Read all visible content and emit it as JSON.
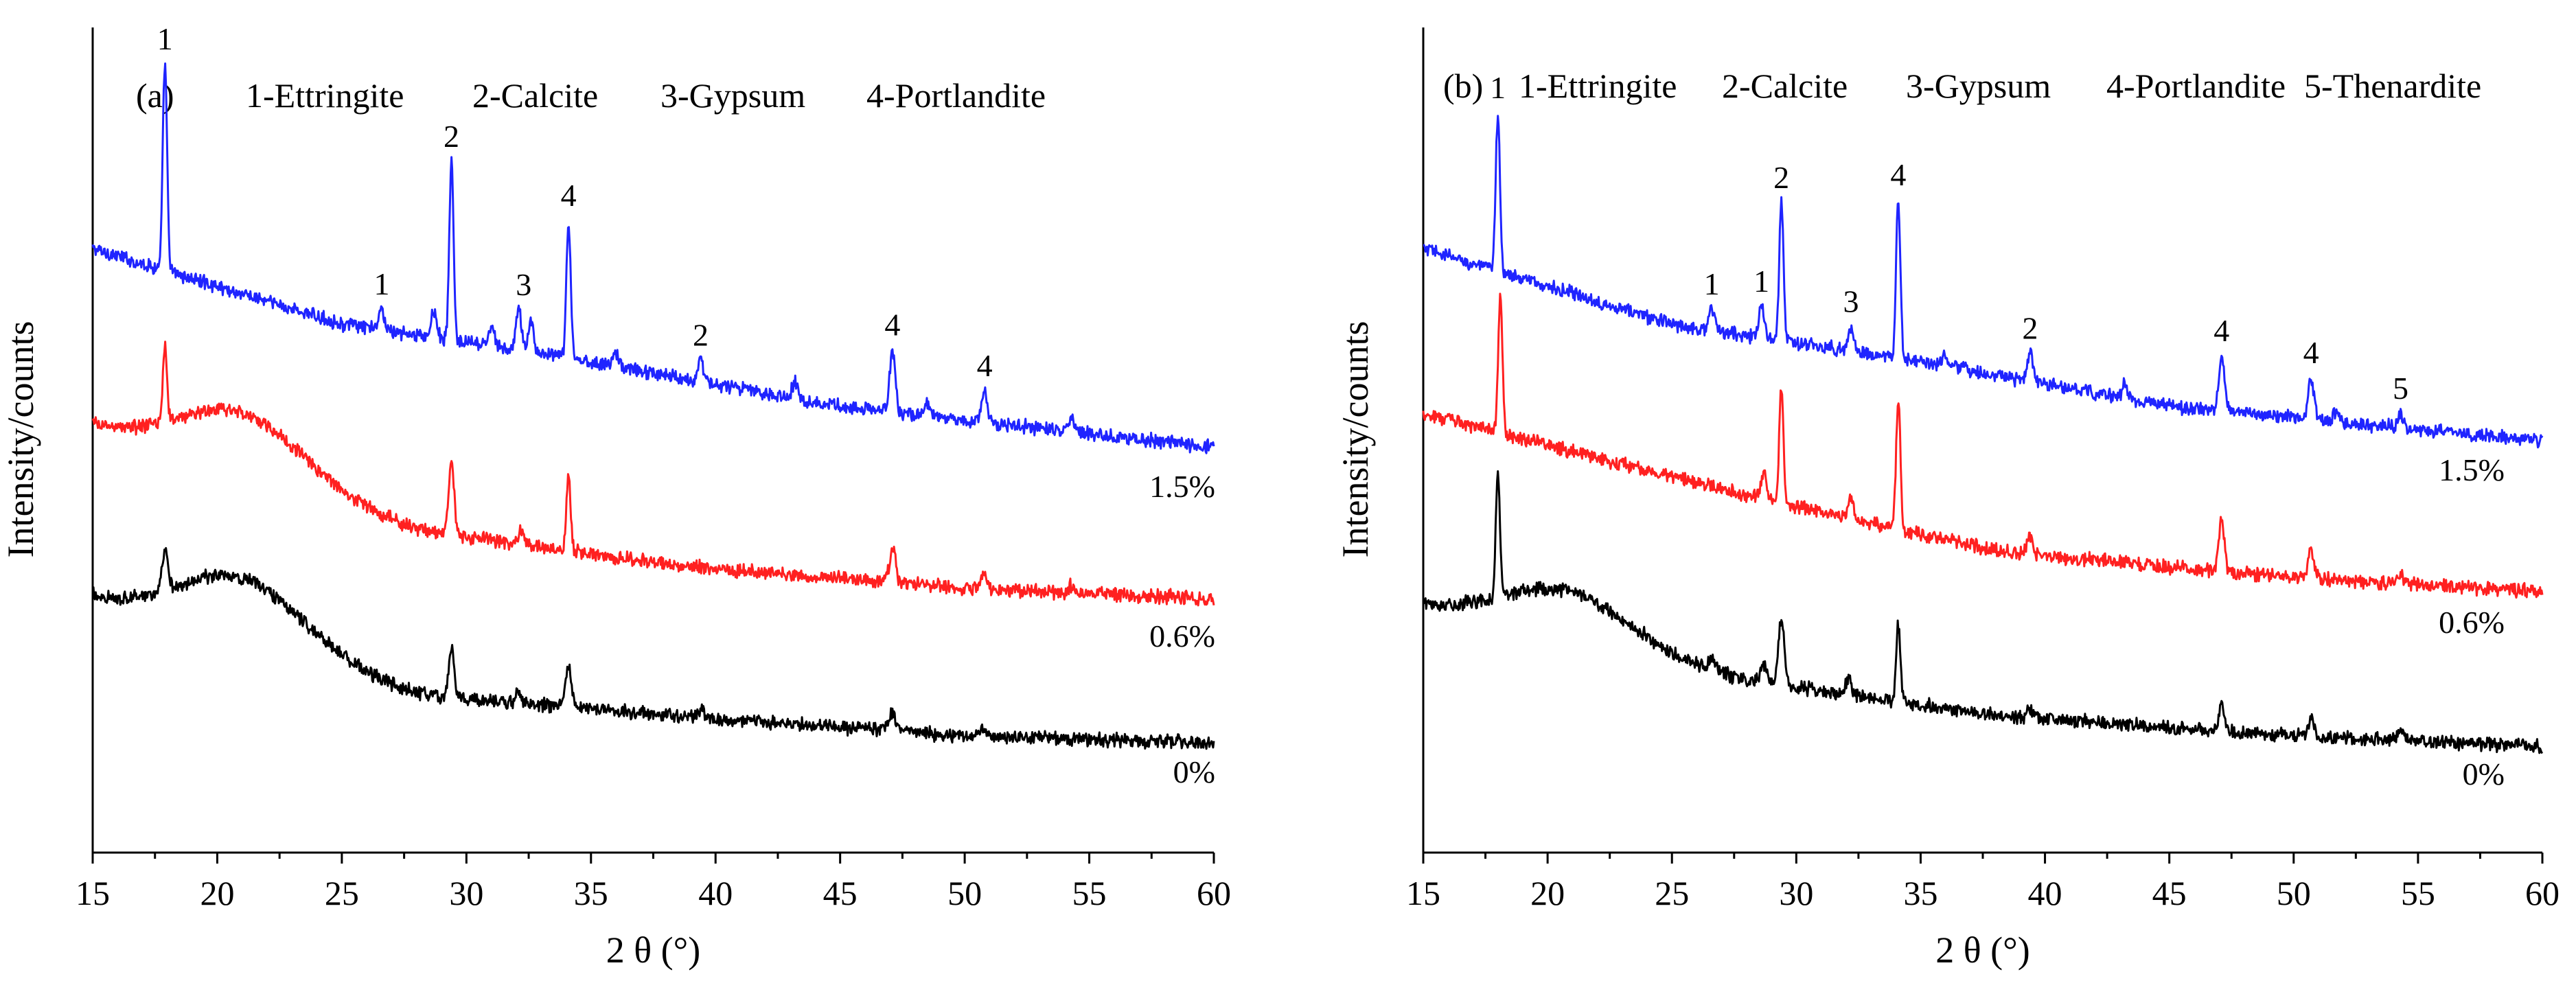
{
  "chart_data": [
    {
      "type": "line",
      "panel": "(a)",
      "legend": [
        "1-Ettringite",
        "2-Calcite",
        "3-Gypsum",
        "4-Portlandite"
      ],
      "xlabel": "2 θ (°)",
      "ylabel": "Intensity/counts",
      "xlim": [
        15,
        60
      ],
      "xticks": [
        15,
        20,
        25,
        30,
        35,
        40,
        45,
        50,
        55,
        60
      ],
      "yticks": false,
      "series": [
        {
          "name": "1.5%",
          "color": "#1f24ff",
          "baseline": [
            [
              15,
              880
            ],
            [
              25,
              770
            ],
            [
              35,
              715
            ],
            [
              45,
              650
            ],
            [
              60,
              590
            ]
          ],
          "humps": [],
          "peaks": [
            [
              17.9,
              300
            ],
            [
              26.6,
              30
            ],
            [
              28.7,
              40
            ],
            [
              29.4,
              260
            ],
            [
              31.0,
              30
            ],
            [
              32.1,
              60
            ],
            [
              32.6,
              45
            ],
            [
              34.1,
              200
            ],
            [
              36.0,
              20
            ],
            [
              39.4,
              30
            ],
            [
              43.2,
              25
            ],
            [
              47.1,
              90
            ],
            [
              48.5,
              20
            ],
            [
              50.8,
              45
            ],
            [
              54.3,
              18
            ]
          ],
          "peak_labels": [
            [
              "1",
              17.9
            ],
            [
              "1",
              26.6
            ],
            [
              "2",
              29.4
            ],
            [
              "3",
              32.3
            ],
            [
              "4",
              34.1
            ],
            [
              "2",
              39.4
            ],
            [
              "4",
              47.1
            ],
            [
              "4",
              50.8
            ]
          ]
        },
        {
          "name": "0.6%",
          "color": "#ff2020",
          "baseline": [
            [
              15,
              620
            ],
            [
              28,
              470
            ],
            [
              38,
              420
            ],
            [
              50,
              385
            ],
            [
              60,
              370
            ]
          ],
          "humps": [
            [
              21.0,
              3.5,
              90
            ]
          ],
          "peaks": [
            [
              17.9,
              110
            ],
            [
              29.4,
              100
            ],
            [
              32.2,
              20
            ],
            [
              34.1,
              110
            ],
            [
              47.1,
              55
            ],
            [
              50.8,
              25
            ],
            [
              54.3,
              12
            ]
          ],
          "peak_labels": []
        },
        {
          "name": "0%",
          "color": "#000000",
          "baseline": [
            [
              15,
              370
            ],
            [
              28,
              230
            ],
            [
              38,
              200
            ],
            [
              50,
              170
            ],
            [
              60,
              160
            ]
          ],
          "humps": [
            [
              21.0,
              3.5,
              95
            ]
          ],
          "peaks": [
            [
              17.9,
              55
            ],
            [
              29.4,
              70
            ],
            [
              32.1,
              18
            ],
            [
              34.1,
              60
            ],
            [
              39.4,
              12
            ],
            [
              47.1,
              28
            ],
            [
              50.8,
              12
            ]
          ],
          "peak_labels": []
        }
      ]
    },
    {
      "type": "line",
      "panel": "(b)",
      "legend": [
        "1-Ettringite",
        "2-Calcite",
        "3-Gypsum",
        "4-Portlandite",
        "5-Thenardite"
      ],
      "xlabel": "2 θ (°)",
      "ylabel": "Intensity/counts",
      "xlim": [
        15,
        60
      ],
      "xticks": [
        15,
        20,
        25,
        30,
        35,
        40,
        45,
        50,
        55,
        60
      ],
      "yticks": false,
      "series": [
        {
          "name": "1.5%",
          "color": "#1f24ff",
          "baseline": [
            [
              15,
              880
            ],
            [
              25,
              770
            ],
            [
              35,
              715
            ],
            [
              45,
              650
            ],
            [
              60,
              600
            ]
          ],
          "humps": [],
          "peaks": [
            [
              18.0,
              230
            ],
            [
              26.6,
              30
            ],
            [
              28.6,
              45
            ],
            [
              29.4,
              200
            ],
            [
              32.2,
              35
            ],
            [
              34.1,
              230
            ],
            [
              36.0,
              15
            ],
            [
              39.4,
              40
            ],
            [
              43.2,
              20
            ],
            [
              47.1,
              80
            ],
            [
              50.7,
              60
            ],
            [
              51.7,
              15
            ],
            [
              54.3,
              20
            ]
          ],
          "peak_labels": [
            [
              "1",
              18.0
            ],
            [
              "1",
              26.6
            ],
            [
              "1",
              28.6
            ],
            [
              "2",
              29.4
            ],
            [
              "3",
              32.2
            ],
            [
              "4",
              34.1
            ],
            [
              "2",
              39.4
            ],
            [
              "4",
              47.1
            ],
            [
              "4",
              50.7
            ],
            [
              "5",
              54.3
            ]
          ]
        },
        {
          "name": "0.6%",
          "color": "#ff2020",
          "baseline": [
            [
              15,
              640
            ],
            [
              28,
              520
            ],
            [
              38,
              440
            ],
            [
              50,
              400
            ],
            [
              60,
              380
            ]
          ],
          "humps": [],
          "peaks": [
            [
              18.1,
              200
            ],
            [
              28.7,
              40
            ],
            [
              29.4,
              170
            ],
            [
              32.2,
              30
            ],
            [
              34.1,
              190
            ],
            [
              39.4,
              25
            ],
            [
              47.1,
              75
            ],
            [
              50.7,
              45
            ],
            [
              54.3,
              15
            ]
          ],
          "peak_labels": []
        },
        {
          "name": "0%",
          "color": "#000000",
          "baseline": [
            [
              15,
              360
            ],
            [
              28,
              250
            ],
            [
              38,
              200
            ],
            [
              50,
              170
            ],
            [
              60,
              155
            ]
          ],
          "humps": [
            [
              20.8,
              3.5,
              70
            ]
          ],
          "peaks": [
            [
              18.0,
              180
            ],
            [
              26.6,
              18
            ],
            [
              28.7,
              25
            ],
            [
              29.4,
              95
            ],
            [
              32.1,
              25
            ],
            [
              34.1,
              110
            ],
            [
              39.4,
              12
            ],
            [
              47.1,
              40
            ],
            [
              50.7,
              28
            ],
            [
              54.3,
              12
            ]
          ],
          "peak_labels": []
        }
      ]
    }
  ]
}
